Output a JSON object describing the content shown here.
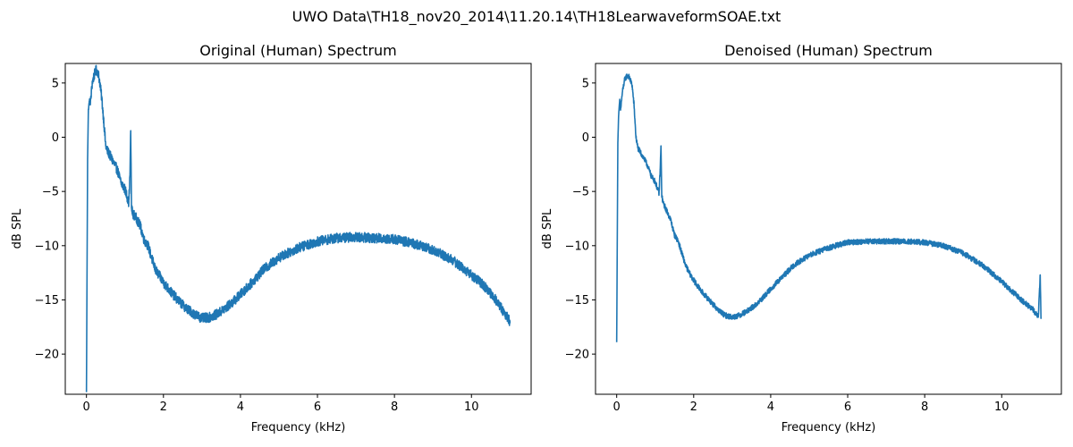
{
  "figure": {
    "suptitle": "UWO Data\\TH18_nov20_2014\\11.20.14\\TH18LearwaveformSOAE.txt",
    "line_color": "#1f77b4"
  },
  "chart_data": [
    {
      "type": "line",
      "title": "Original (Human) Spectrum",
      "xlabel": "Frequency (kHz)",
      "ylabel": "dB SPL",
      "xlim": [
        -0.55,
        11.55
      ],
      "ylim": [
        -23.7,
        6.8
      ],
      "xticks": [
        0,
        2,
        4,
        6,
        8,
        10
      ],
      "yticks": [
        -20,
        -15,
        -10,
        -5,
        0,
        5
      ],
      "grid": false,
      "series": [
        {
          "x": [
            0.0,
            0.03,
            0.05,
            0.08,
            0.1,
            0.15,
            0.2,
            0.25,
            0.3,
            0.35,
            0.4,
            0.45,
            0.5,
            0.55,
            0.6,
            0.7,
            0.8,
            0.9,
            1.0,
            1.1,
            1.13,
            1.15,
            1.17,
            1.2,
            1.3,
            1.4,
            1.5,
            1.6,
            1.7,
            1.8,
            1.9,
            2.0,
            2.2,
            2.4,
            2.6,
            2.8,
            3.0,
            3.2,
            3.4,
            3.6,
            3.8,
            4.0,
            4.3,
            4.6,
            5.0,
            5.5,
            6.0,
            6.5,
            7.0,
            7.5,
            8.0,
            8.5,
            9.0,
            9.5,
            10.0,
            10.3,
            10.6,
            10.8,
            11.0
          ],
          "y": [
            -23.5,
            -2.0,
            2.5,
            3.5,
            3.0,
            5.0,
            5.7,
            6.2,
            6.0,
            5.0,
            3.5,
            1.5,
            -0.8,
            -1.3,
            -1.6,
            -2.3,
            -3.0,
            -4.2,
            -4.8,
            -6.0,
            -3.5,
            0.6,
            -6.5,
            -7.0,
            -7.5,
            -8.2,
            -9.5,
            -10.0,
            -11.2,
            -12.3,
            -12.8,
            -13.4,
            -14.3,
            -15.1,
            -15.8,
            -16.3,
            -16.7,
            -16.6,
            -16.3,
            -15.8,
            -15.2,
            -14.5,
            -13.4,
            -12.2,
            -11.1,
            -10.2,
            -9.6,
            -9.3,
            -9.2,
            -9.3,
            -9.4,
            -9.8,
            -10.4,
            -11.3,
            -12.7,
            -13.6,
            -14.8,
            -15.9,
            -17.0
          ],
          "noise": 0.45
        }
      ]
    },
    {
      "type": "line",
      "title": "Denoised (Human) Spectrum",
      "xlabel": "Frequency (kHz)",
      "ylabel": "dB SPL",
      "xlim": [
        -0.55,
        11.55
      ],
      "ylim": [
        -23.7,
        6.8
      ],
      "xticks": [
        0,
        2,
        4,
        6,
        8,
        10
      ],
      "yticks": [
        -20,
        -15,
        -10,
        -5,
        0,
        5
      ],
      "grid": false,
      "series": [
        {
          "x": [
            0.0,
            0.03,
            0.05,
            0.08,
            0.1,
            0.15,
            0.2,
            0.25,
            0.3,
            0.35,
            0.4,
            0.45,
            0.5,
            0.55,
            0.6,
            0.7,
            0.8,
            0.9,
            1.0,
            1.1,
            1.13,
            1.15,
            1.17,
            1.2,
            1.3,
            1.4,
            1.5,
            1.6,
            1.7,
            1.8,
            1.9,
            2.0,
            2.2,
            2.4,
            2.6,
            2.8,
            3.0,
            3.2,
            3.4,
            3.6,
            3.8,
            4.0,
            4.3,
            4.6,
            5.0,
            5.5,
            6.0,
            6.5,
            7.0,
            7.5,
            8.0,
            8.5,
            9.0,
            9.5,
            10.0,
            10.3,
            10.6,
            10.8,
            10.95,
            11.0,
            11.02
          ],
          "y": [
            -18.9,
            -0.5,
            2.0,
            3.5,
            2.5,
            4.2,
            5.2,
            5.6,
            5.7,
            5.3,
            4.8,
            3.0,
            0.0,
            -1.0,
            -1.3,
            -1.9,
            -2.6,
            -3.6,
            -4.1,
            -5.2,
            -3.0,
            -0.8,
            -5.3,
            -6.0,
            -6.8,
            -7.6,
            -9.0,
            -9.6,
            -10.8,
            -11.9,
            -12.6,
            -13.2,
            -14.2,
            -15.0,
            -15.8,
            -16.4,
            -16.6,
            -16.4,
            -16.0,
            -15.5,
            -14.8,
            -14.0,
            -12.9,
            -11.8,
            -10.9,
            -10.2,
            -9.7,
            -9.6,
            -9.6,
            -9.6,
            -9.7,
            -10.0,
            -10.7,
            -11.8,
            -13.3,
            -14.3,
            -15.3,
            -15.8,
            -16.6,
            -12.7,
            -16.7
          ],
          "noise": 0.25
        }
      ]
    }
  ]
}
